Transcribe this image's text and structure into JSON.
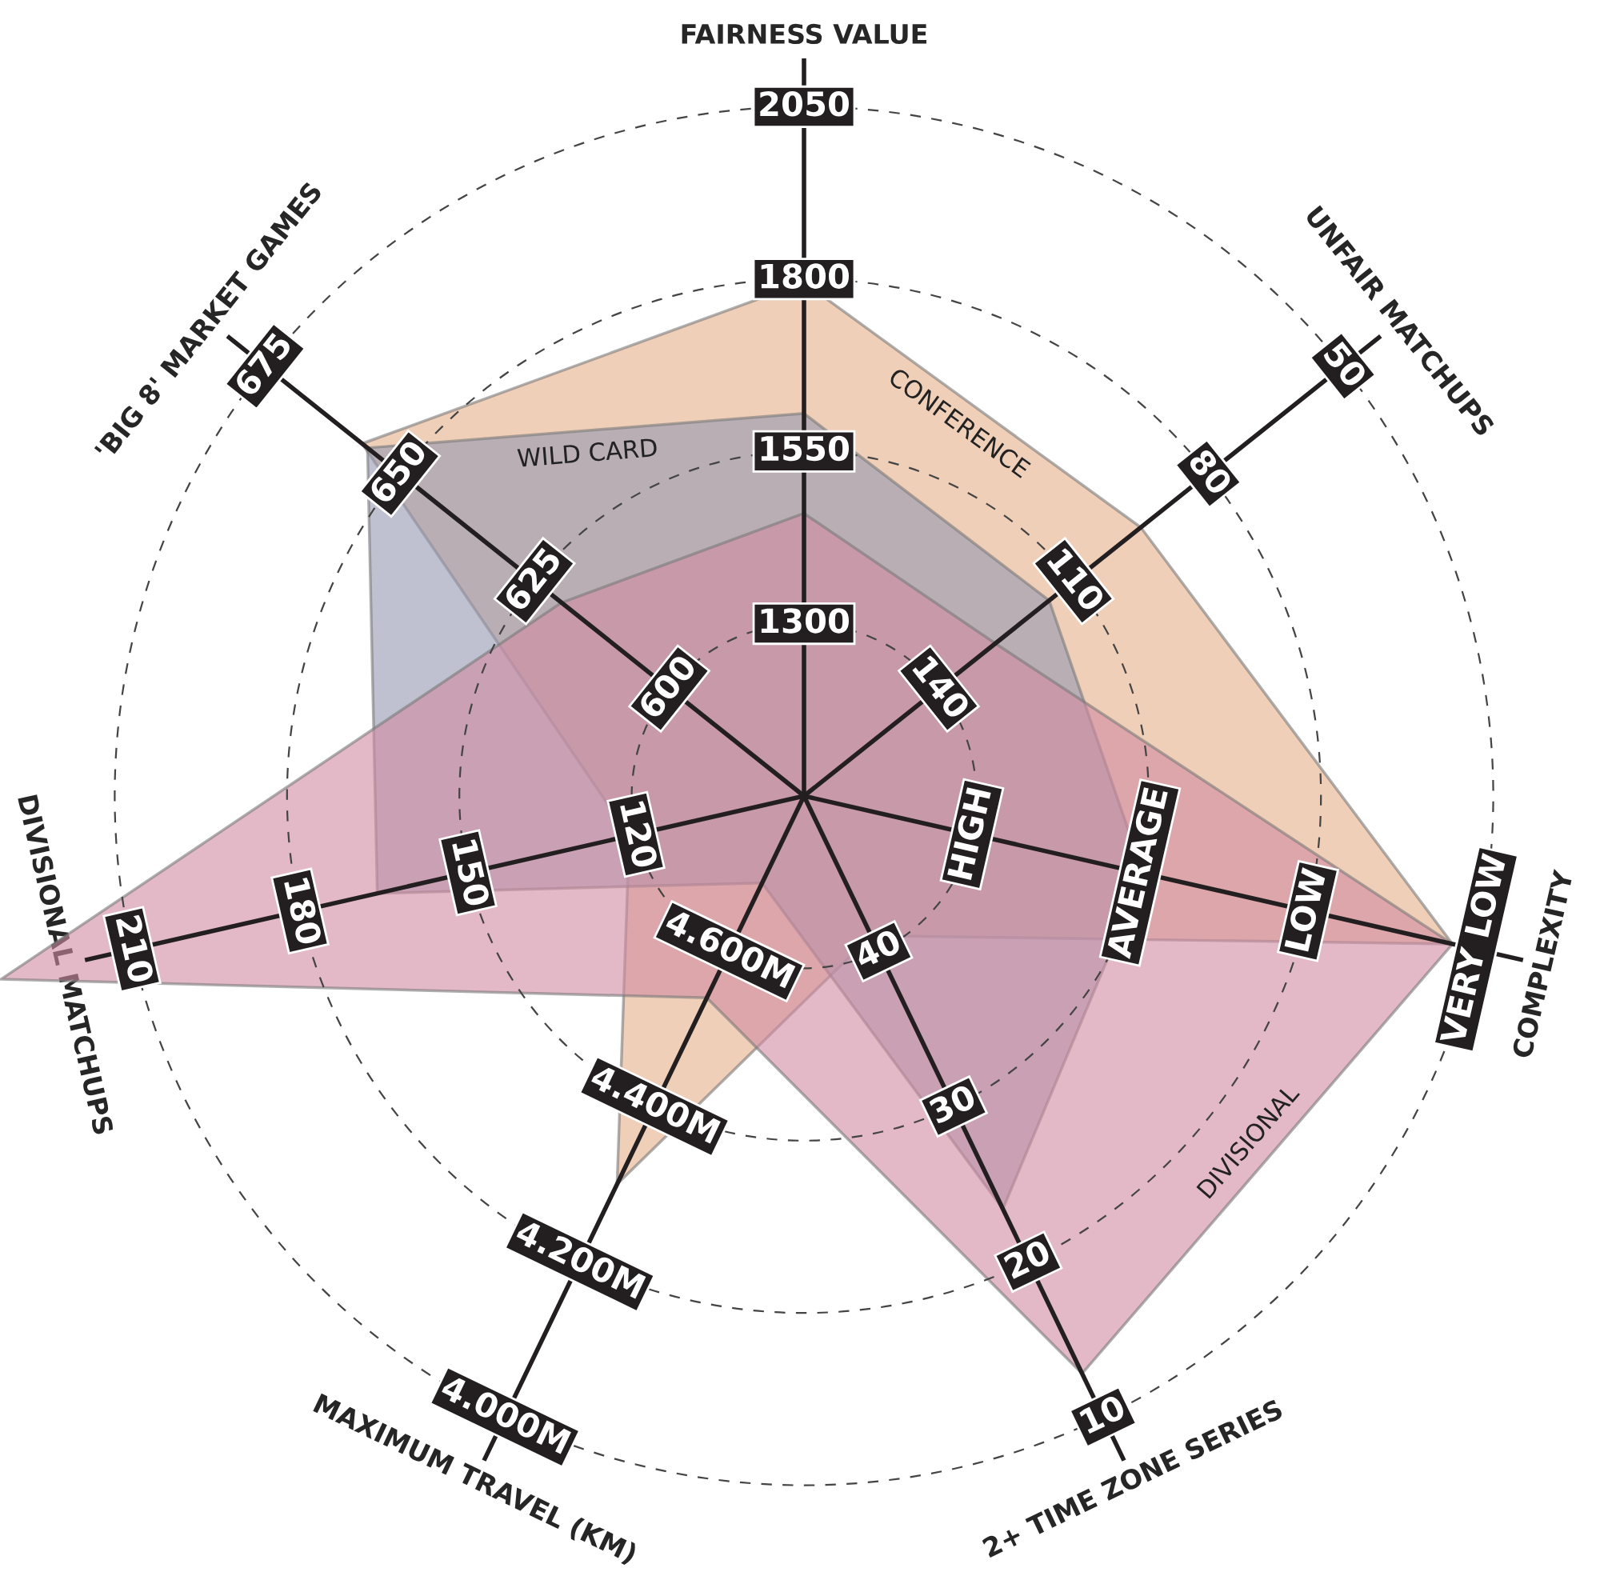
{
  "chart_data": {
    "type": "radar",
    "categories": [
      "FAIRNESS VALUE",
      "UNFAIR MATCHUPS",
      "COMPLEXITY",
      "2+ TIME ZONE SERIES",
      "MAXIMUM TRAVEL (KM)",
      "DIVISIONAL MATCHUPS",
      "'BIG 8' MARKET GAMES"
    ],
    "series": [
      {
        "name": "CONFERENCE",
        "color": "#f0cfb9",
        "values": [
          1795,
          1675,
          2015,
          1275,
          1675,
          1310,
          1870
        ]
      },
      {
        "name": "WILD CARD",
        "color": "#bfc1d0",
        "values": [
          1605,
          1505,
          1555,
          1715,
          1190,
          1685,
          1860
        ]
      },
      {
        "name": "DIVISIONAL",
        "color": "#e3b9c7",
        "values": [
          1460,
          1405,
          2015,
          1980,
          1375,
          2245,
          1500
        ]
      }
    ],
    "ylim": [
      1050,
      2300
    ],
    "yticks": [
      1300,
      1550,
      1800,
      2050
    ],
    "grid": "y",
    "annotations": [
      "140",
      "110",
      "80",
      "50",
      "HIGH",
      "AVERAGE",
      "LOW",
      "VERY LOW",
      "40",
      "30",
      "20",
      "10",
      "4.600M",
      "4.400M",
      "4.200M",
      "4.000M",
      "120",
      "150",
      "180",
      "210",
      "600",
      "625",
      "650",
      "675"
    ]
  }
}
